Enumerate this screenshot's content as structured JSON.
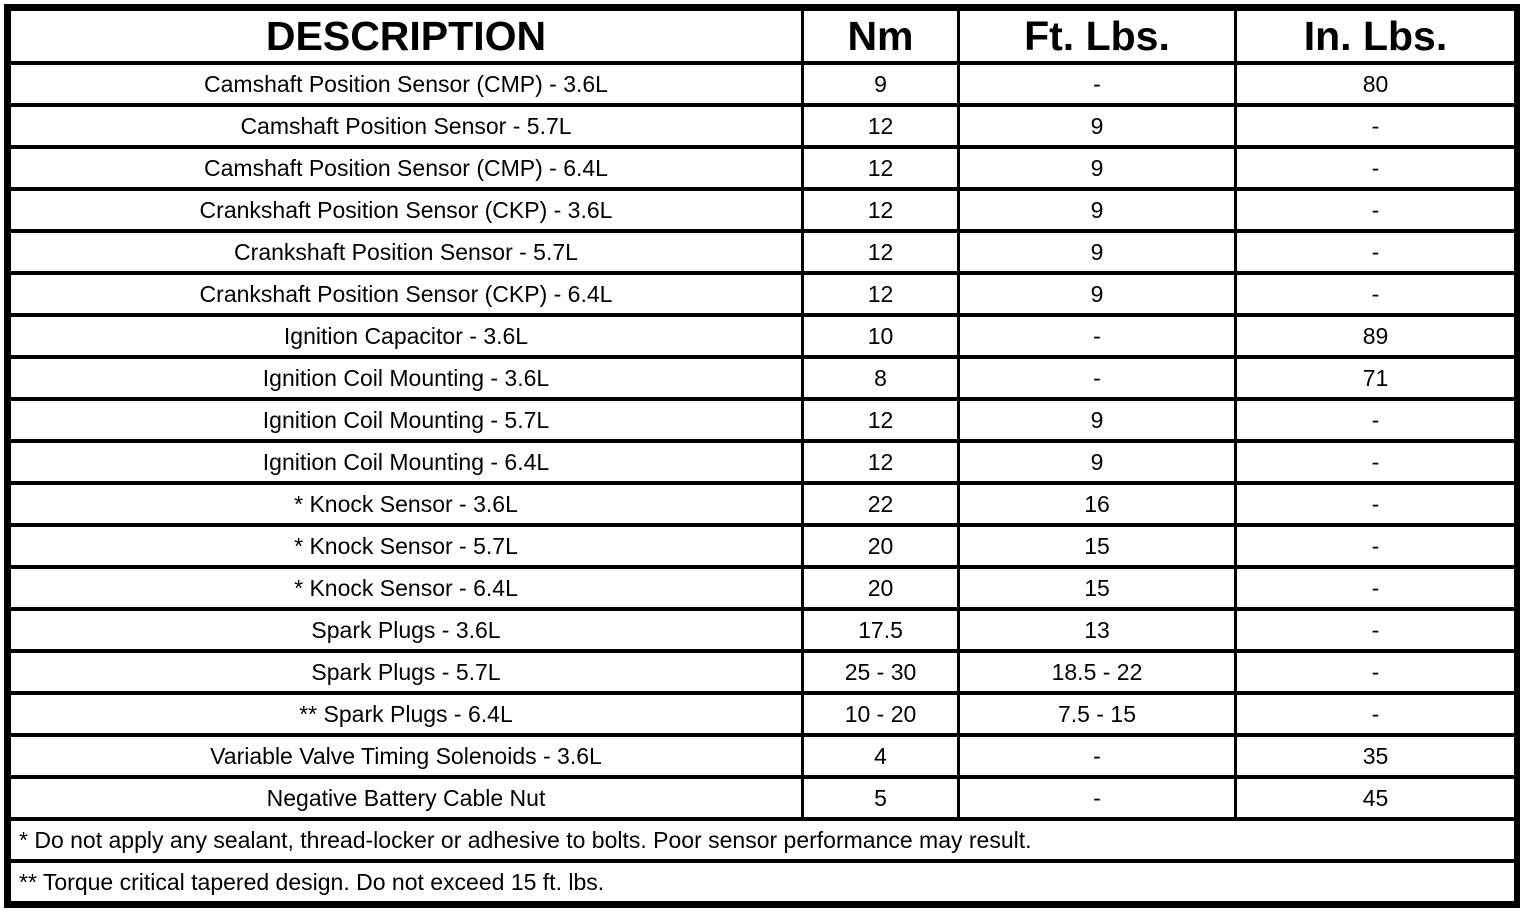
{
  "colors": {
    "border": "#000000",
    "text": "#000000",
    "background": "#ffffff"
  },
  "table": {
    "headers": {
      "description": "DESCRIPTION",
      "nm": "Nm",
      "ft_lbs": "Ft. Lbs.",
      "in_lbs": "In. Lbs."
    },
    "rows": [
      {
        "description": "Camshaft Position Sensor (CMP) - 3.6L",
        "nm": "9",
        "ft_lbs": "-",
        "in_lbs": "80"
      },
      {
        "description": "Camshaft Position Sensor - 5.7L",
        "nm": "12",
        "ft_lbs": "9",
        "in_lbs": "-"
      },
      {
        "description": "Camshaft Position Sensor (CMP) - 6.4L",
        "nm": "12",
        "ft_lbs": "9",
        "in_lbs": "-"
      },
      {
        "description": "Crankshaft Position Sensor (CKP) - 3.6L",
        "nm": "12",
        "ft_lbs": "9",
        "in_lbs": "-"
      },
      {
        "description": "Crankshaft Position Sensor - 5.7L",
        "nm": "12",
        "ft_lbs": "9",
        "in_lbs": "-"
      },
      {
        "description": "Crankshaft Position Sensor (CKP) - 6.4L",
        "nm": "12",
        "ft_lbs": "9",
        "in_lbs": "-"
      },
      {
        "description": "Ignition Capacitor - 3.6L",
        "nm": "10",
        "ft_lbs": "-",
        "in_lbs": "89"
      },
      {
        "description": "Ignition Coil Mounting - 3.6L",
        "nm": "8",
        "ft_lbs": "-",
        "in_lbs": "71"
      },
      {
        "description": "Ignition Coil Mounting - 5.7L",
        "nm": "12",
        "ft_lbs": "9",
        "in_lbs": "-"
      },
      {
        "description": "Ignition Coil Mounting - 6.4L",
        "nm": "12",
        "ft_lbs": "9",
        "in_lbs": "-"
      },
      {
        "description": "* Knock Sensor - 3.6L",
        "nm": "22",
        "ft_lbs": "16",
        "in_lbs": "-"
      },
      {
        "description": "* Knock Sensor - 5.7L",
        "nm": "20",
        "ft_lbs": "15",
        "in_lbs": "-"
      },
      {
        "description": "* Knock Sensor - 6.4L",
        "nm": "20",
        "ft_lbs": "15",
        "in_lbs": "-"
      },
      {
        "description": "Spark Plugs - 3.6L",
        "nm": "17.5",
        "ft_lbs": "13",
        "in_lbs": "-"
      },
      {
        "description": "Spark Plugs - 5.7L",
        "nm": "25 - 30",
        "ft_lbs": "18.5 - 22",
        "in_lbs": "-"
      },
      {
        "description": "** Spark Plugs - 6.4L",
        "nm": "10 - 20",
        "ft_lbs": "7.5 - 15",
        "in_lbs": "-"
      },
      {
        "description": "Variable Valve Timing Solenoids - 3.6L",
        "nm": "4",
        "ft_lbs": "-",
        "in_lbs": "35"
      },
      {
        "description": "Negative Battery Cable Nut",
        "nm": "5",
        "ft_lbs": "-",
        "in_lbs": "45"
      }
    ],
    "footnotes": [
      "* Do not apply any sealant, thread-locker or adhesive to bolts. Poor sensor performance may result.",
      "** Torque critical tapered design. Do not exceed 15 ft. lbs."
    ]
  }
}
